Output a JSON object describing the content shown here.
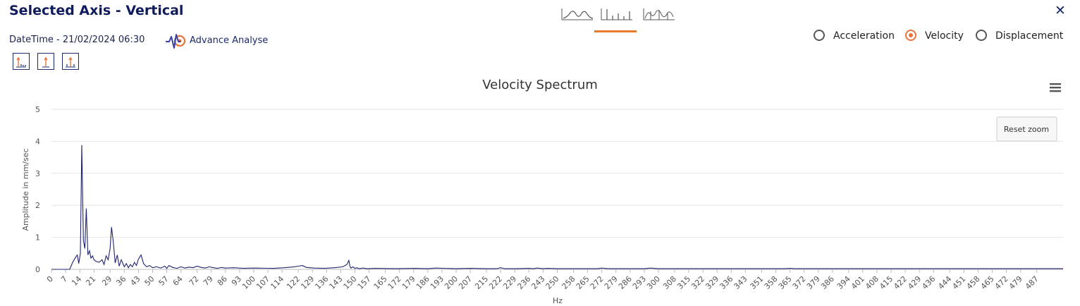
{
  "header": {
    "title": "Selected Axis - Vertical",
    "close_icon": "close-icon"
  },
  "view_toggle": {
    "options": [
      {
        "name": "waveform-view-icon",
        "active": false
      },
      {
        "name": "spectrum-view-icon",
        "active": true
      },
      {
        "name": "overlay-view-icon",
        "active": false
      }
    ],
    "active_color": "#e87a30"
  },
  "info": {
    "datetime": "DateTime - 21/02/2024 06:30",
    "advance_label": "Advance Analyse"
  },
  "tools": [
    {
      "name": "harmonic-cursor-icon"
    },
    {
      "name": "single-cursor-icon"
    },
    {
      "name": "sideband-cursor-icon"
    }
  ],
  "measurement": {
    "options": [
      "Acceleration",
      "Velocity",
      "Displacement"
    ],
    "selected": "Velocity",
    "accent": "#e8743b"
  },
  "chart": {
    "reset_zoom": "Reset zoom",
    "menu_icon": "hamburger-menu-icon"
  },
  "chart_data": {
    "type": "line",
    "title": "Velocity Spectrum",
    "xlabel": "Hz",
    "ylabel": "Amplitude in mm/sec",
    "ylim": [
      0,
      5
    ],
    "yticks": [
      0,
      1,
      2,
      3,
      4,
      5
    ],
    "xlim": [
      0,
      500
    ],
    "xticks": [
      0,
      7,
      14,
      21,
      29,
      36,
      43,
      50,
      57,
      64,
      72,
      79,
      86,
      93,
      100,
      107,
      114,
      122,
      129,
      136,
      143,
      150,
      157,
      165,
      172,
      179,
      186,
      193,
      200,
      207,
      215,
      222,
      229,
      236,
      243,
      250,
      258,
      265,
      272,
      279,
      286,
      293,
      300,
      308,
      315,
      322,
      329,
      336,
      343,
      351,
      358,
      365,
      372,
      379,
      386,
      394,
      401,
      408,
      415,
      422,
      429,
      436,
      444,
      451,
      458,
      465,
      472,
      479,
      487
    ],
    "grid": true,
    "legend": "none",
    "line_color": "#1f2470",
    "series": [
      {
        "x": [
          0,
          9,
          10.5,
          12,
          12.8,
          13.5,
          14.3,
          15,
          15.8,
          16.5,
          17.2,
          18,
          18.8,
          19.5,
          20.3,
          21,
          22,
          23.5,
          25,
          26,
          27,
          28,
          29,
          29.7,
          30.5,
          31.5,
          32.5,
          33.5,
          34.5,
          36,
          37,
          38,
          39,
          40,
          41,
          42,
          43,
          44.3,
          45.5,
          47,
          48.5,
          50,
          52,
          54,
          56,
          57,
          58,
          60,
          62,
          64,
          66,
          68,
          70,
          72,
          74,
          76,
          78,
          80,
          82,
          84,
          86,
          90,
          95,
          100,
          110,
          115,
          120,
          122,
          124,
          126,
          130,
          135,
          140,
          144,
          146,
          147,
          147.5,
          148,
          149,
          150,
          151,
          152,
          154,
          156,
          160,
          170,
          180,
          186,
          190,
          200,
          207,
          215,
          220,
          222,
          224,
          230,
          236,
          238,
          240,
          243,
          245,
          250,
          260,
          270,
          272,
          275,
          280,
          290,
          293,
          296,
          300,
          320,
          340,
          350,
          363,
          365,
          367,
          380,
          400,
          420,
          440,
          460,
          480,
          500
        ],
        "y": [
          0,
          0,
          0.22,
          0.38,
          0.45,
          0.18,
          0.5,
          3.88,
          0.9,
          0.65,
          1.9,
          0.45,
          0.58,
          0.35,
          0.42,
          0.3,
          0.25,
          0.22,
          0.3,
          0.15,
          0.42,
          0.3,
          0.65,
          1.32,
          0.9,
          0.2,
          0.45,
          0.1,
          0.3,
          0.08,
          0.18,
          0.05,
          0.15,
          0.08,
          0.22,
          0.12,
          0.32,
          0.45,
          0.18,
          0.08,
          0.12,
          0.05,
          0.08,
          0.04,
          0.1,
          0.03,
          0.12,
          0.06,
          0.03,
          0.08,
          0.04,
          0.07,
          0.05,
          0.1,
          0.06,
          0.04,
          0.08,
          0.05,
          0.03,
          0.06,
          0.04,
          0.05,
          0.03,
          0.04,
          0.03,
          0.05,
          0.08,
          0.1,
          0.12,
          0.06,
          0.04,
          0.03,
          0.05,
          0.08,
          0.15,
          0.28,
          0.1,
          0.04,
          0.08,
          0.03,
          0.05,
          0.02,
          0.04,
          0.02,
          0.03,
          0.02,
          0.03,
          0.02,
          0.04,
          0.02,
          0.03,
          0.02,
          0.02,
          0.05,
          0.02,
          0.02,
          0.03,
          0.02,
          0.04,
          0.02,
          0.03,
          0.02,
          0.02,
          0.02,
          0.04,
          0.02,
          0.02,
          0.02,
          0.02,
          0.04,
          0.02,
          0.02,
          0.02,
          0.02,
          0.02,
          0.03,
          0.02,
          0.02,
          0.02,
          0.02,
          0.02,
          0.02,
          0.02,
          0.02
        ]
      }
    ]
  }
}
